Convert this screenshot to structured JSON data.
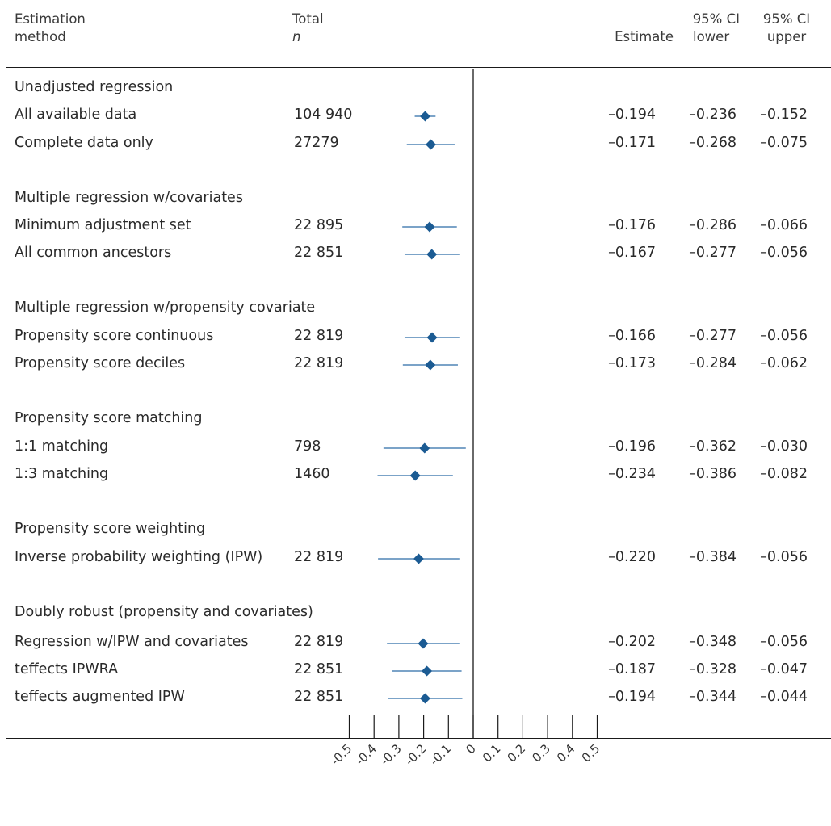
{
  "header": {
    "method_label": [
      "Estimation",
      "method"
    ],
    "n_label": [
      "Total",
      "n"
    ],
    "estimate_label": "Estimate",
    "ci_lower_label": [
      "95% CI",
      "lower"
    ],
    "ci_upper_label": [
      "95% CI",
      "upper"
    ]
  },
  "colors": {
    "marker": "#1b5b93",
    "ci_line": "#2c6ca8",
    "axis": "#1a1a1a"
  },
  "chart_data": {
    "type": "forest",
    "xlim": [
      -0.5,
      0.5
    ],
    "xticks": [
      -0.5,
      -0.4,
      -0.3,
      -0.2,
      -0.1,
      0,
      0.1,
      0.2,
      0.3,
      0.4,
      0.5
    ],
    "xtick_labels": [
      "-0.5",
      "-0.4",
      "-0.3",
      "-0.2",
      "-0.1",
      "0",
      "0.1",
      "0.2",
      "0.3",
      "0.4",
      "0.5"
    ],
    "reference_line": 0,
    "rows": [
      {
        "kind": "group",
        "label": "Unadjusted regression"
      },
      {
        "kind": "item",
        "label": "All available data",
        "n": "104 940",
        "estimate": -0.194,
        "lower": -0.236,
        "upper": -0.152,
        "estimate_text": "–0.194",
        "lower_text": "–0.236",
        "upper_text": "–0.152"
      },
      {
        "kind": "item",
        "label": "Complete data only",
        "n": "27279",
        "estimate": -0.171,
        "lower": -0.268,
        "upper": -0.075,
        "estimate_text": "–0.171",
        "lower_text": "–0.268",
        "upper_text": "–0.075"
      },
      {
        "kind": "group",
        "label": "Multiple regression w/covariates"
      },
      {
        "kind": "item",
        "label": "Minimum adjustment set",
        "n": "22 895",
        "estimate": -0.176,
        "lower": -0.286,
        "upper": -0.066,
        "estimate_text": "–0.176",
        "lower_text": "–0.286",
        "upper_text": "–0.066"
      },
      {
        "kind": "item",
        "label": "All common ancestors",
        "n": "22 851",
        "estimate": -0.167,
        "lower": -0.277,
        "upper": -0.056,
        "estimate_text": "–0.167",
        "lower_text": "–0.277",
        "upper_text": "–0.056"
      },
      {
        "kind": "group",
        "label": "Multiple regression w/propensity covariate"
      },
      {
        "kind": "item",
        "label": "Propensity score continuous",
        "n": "22 819",
        "estimate": -0.166,
        "lower": -0.277,
        "upper": -0.056,
        "estimate_text": "–0.166",
        "lower_text": "–0.277",
        "upper_text": "–0.056"
      },
      {
        "kind": "item",
        "label": "Propensity score deciles",
        "n": "22 819",
        "estimate": -0.173,
        "lower": -0.284,
        "upper": -0.062,
        "estimate_text": "–0.173",
        "lower_text": "–0.284",
        "upper_text": "–0.062"
      },
      {
        "kind": "group",
        "label": "Propensity score matching"
      },
      {
        "kind": "item",
        "label": "1:1 matching",
        "n": "798",
        "estimate": -0.196,
        "lower": -0.362,
        "upper": -0.03,
        "estimate_text": "–0.196",
        "lower_text": "–0.362",
        "upper_text": "–0.030"
      },
      {
        "kind": "item",
        "label": "1:3 matching",
        "n": "1460",
        "estimate": -0.234,
        "lower": -0.386,
        "upper": -0.082,
        "estimate_text": "–0.234",
        "lower_text": "–0.386",
        "upper_text": "–0.082"
      },
      {
        "kind": "group",
        "label": "Propensity score weighting"
      },
      {
        "kind": "item",
        "label": "Inverse probability weighting (IPW)",
        "n": "22 819",
        "estimate": -0.22,
        "lower": -0.384,
        "upper": -0.056,
        "estimate_text": "–0.220",
        "lower_text": "–0.384",
        "upper_text": "–0.056"
      },
      {
        "kind": "group",
        "label": "Doubly robust (propensity and covariates)"
      },
      {
        "kind": "item",
        "label": "Regression w/IPW and covariates",
        "n": "22 819",
        "estimate": -0.202,
        "lower": -0.348,
        "upper": -0.056,
        "estimate_text": "–0.202",
        "lower_text": "–0.348",
        "upper_text": "–0.056"
      },
      {
        "kind": "item",
        "label": "teffects IPWRA",
        "n": "22 851",
        "estimate": -0.187,
        "lower": -0.328,
        "upper": -0.047,
        "estimate_text": "–0.187",
        "lower_text": "–0.328",
        "upper_text": "–0.047"
      },
      {
        "kind": "item",
        "label": "teffects augmented IPW",
        "n": "22 851",
        "estimate": -0.194,
        "lower": -0.344,
        "upper": -0.044,
        "estimate_text": "–0.194",
        "lower_text": "–0.344",
        "upper_text": "–0.044"
      }
    ]
  }
}
